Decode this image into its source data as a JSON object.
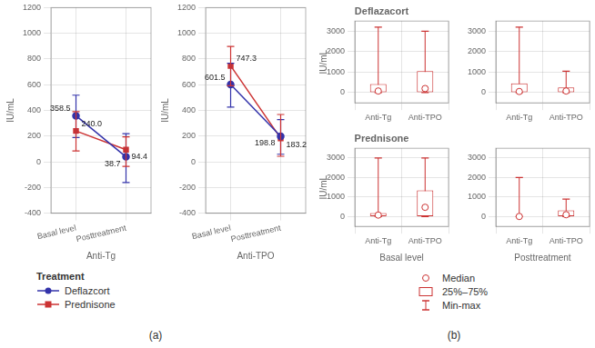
{
  "chart_data": [
    {
      "type": "line",
      "xlabel": "Anti-Tg",
      "ylabel": "IU/mL",
      "categories": [
        "Basal level",
        "Posttreatment"
      ],
      "series": [
        {
          "name": "Deflazcort",
          "color": "#3333aa",
          "marker": "o",
          "values": [
            358.5,
            38.7
          ],
          "value_labels": [
            "358.5",
            "38.7"
          ],
          "error_lo": [
            170,
            200
          ],
          "error_hi": [
            160,
            180
          ]
        },
        {
          "name": "Prednisone",
          "color": "#cc3333",
          "marker": "s",
          "values": [
            240.0,
            94.4
          ],
          "value_labels": [
            "240.0",
            "94.4"
          ],
          "error_lo": [
            155,
            130
          ],
          "error_hi": [
            150,
            100
          ]
        }
      ],
      "ylim": [
        -400,
        1200
      ],
      "yticks": [
        -400,
        -200,
        0,
        200,
        400,
        600,
        800,
        1000,
        1200
      ],
      "grid": true,
      "data_labels": true,
      "legend": "bottom",
      "legend_title": "Treatment",
      "annotations": [
        "(a)"
      ]
    },
    {
      "type": "line",
      "xlabel": "Anti-TPO",
      "ylabel": "IU/mL",
      "categories": [
        "Basal level",
        "Posttreatment"
      ],
      "series": [
        {
          "name": "Deflazcort",
          "color": "#3333aa",
          "marker": "o",
          "values": [
            601.5,
            198.8
          ],
          "value_labels": [
            "601.5",
            "198.8"
          ],
          "error_lo": [
            175,
            140
          ],
          "error_hi": [
            165,
            130
          ]
        },
        {
          "name": "Prednisone",
          "color": "#cc3333",
          "marker": "s",
          "values": [
            747.3,
            183.2
          ],
          "value_labels": [
            "747.3",
            "183.2"
          ],
          "error_lo": [
            155,
            140
          ],
          "error_hi": [
            150,
            185
          ]
        }
      ],
      "ylim": [
        -400,
        1200
      ],
      "yticks": [
        -400,
        -200,
        0,
        200,
        400,
        600,
        800,
        1000,
        1200
      ],
      "grid": true,
      "data_labels": true
    },
    {
      "type": "box",
      "title": "Deflazacort",
      "ylabel": "IU/mL",
      "categories": [
        "Anti-Tg",
        "Anti-TPO"
      ],
      "series": [
        {
          "name": "Median",
          "type": "scatter",
          "marker": "o",
          "color": "#cc3333",
          "values": [
            80,
            200
          ]
        },
        {
          "name": "25%–75%",
          "type": "bar",
          "color": "#cc3333",
          "values": [
            [
              0,
              420
            ],
            [
              0,
              1050
            ]
          ]
        },
        {
          "name": "Min-max",
          "type": "range",
          "color": "#cc3333",
          "values": [
            [
              0,
              3200
            ],
            [
              0,
              3000
            ]
          ]
        }
      ],
      "ylim": [
        -500,
        3500
      ],
      "yticks": [
        0,
        1000,
        2000,
        3000
      ],
      "grid": true,
      "legend": "bottom",
      "annotations": [
        "(b)"
      ]
    },
    {
      "type": "box",
      "categories": [
        "Anti-Tg",
        "Anti-TPO"
      ],
      "series": [
        {
          "name": "Median",
          "type": "scatter",
          "marker": "o",
          "color": "#cc3333",
          "values": [
            55,
            80
          ]
        },
        {
          "name": "25%–75%",
          "type": "bar",
          "color": "#cc3333",
          "values": [
            [
              0,
              450
            ],
            [
              0,
              250
            ]
          ]
        },
        {
          "name": "Min-max",
          "type": "range",
          "color": "#cc3333",
          "values": [
            [
              0,
              3200
            ],
            [
              0,
              1050
            ]
          ]
        }
      ],
      "ylim": [
        -500,
        3500
      ],
      "yticks": [
        0,
        1000,
        2000,
        3000
      ],
      "grid": true
    },
    {
      "type": "box",
      "title": "Prednisone",
      "ylabel": "IU/mL",
      "xlabel": "Basal level",
      "categories": [
        "Anti-Tg",
        "Anti-TPO"
      ],
      "series": [
        {
          "name": "Median",
          "type": "scatter",
          "marker": "o",
          "color": "#cc3333",
          "values": [
            80,
            480
          ]
        },
        {
          "name": "25%–75%",
          "type": "bar",
          "color": "#cc3333",
          "values": [
            [
              0,
              180
            ],
            [
              0,
              1350
            ]
          ]
        },
        {
          "name": "Min-max",
          "type": "range",
          "color": "#cc3333",
          "values": [
            [
              0,
              3000
            ],
            [
              0,
              3000
            ]
          ]
        }
      ],
      "ylim": [
        -500,
        3500
      ],
      "yticks": [
        0,
        1000,
        2000,
        3000
      ],
      "grid": true
    },
    {
      "type": "box",
      "xlabel": "Posttreatment",
      "categories": [
        "Anti-Tg",
        "Anti-TPO"
      ],
      "series": [
        {
          "name": "Median",
          "type": "scatter",
          "marker": "o",
          "color": "#cc3333",
          "values": [
            10,
            100
          ]
        },
        {
          "name": "25%–75%",
          "type": "bar",
          "color": "#cc3333",
          "values": [
            [
              0,
              0
            ],
            [
              0,
              320
            ]
          ]
        },
        {
          "name": "Min-max",
          "type": "range",
          "color": "#cc3333",
          "values": [
            [
              0,
              2000
            ],
            [
              0,
              900
            ]
          ]
        }
      ],
      "ylim": [
        -500,
        3500
      ],
      "yticks": [
        0,
        1000,
        2000,
        3000
      ],
      "grid": true
    }
  ]
}
